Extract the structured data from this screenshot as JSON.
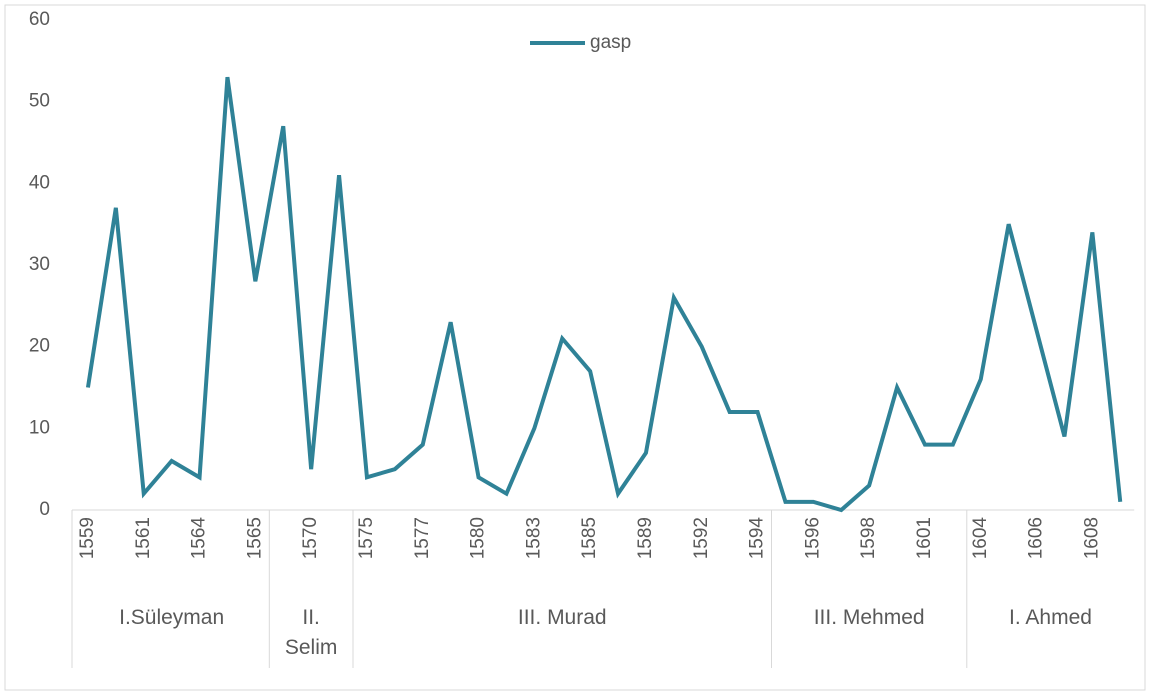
{
  "chart_data": {
    "type": "line",
    "categories": [
      "1559",
      null,
      "1561",
      null,
      "1564",
      null,
      "1565",
      null,
      "1570",
      null,
      "1575",
      null,
      "1577",
      null,
      "1580",
      null,
      "1583",
      null,
      "1585",
      null,
      "1589",
      null,
      "1592",
      null,
      "1594",
      null,
      "1596",
      null,
      "1598",
      null,
      "1601",
      null,
      "1604",
      null,
      "1606",
      null,
      "1608",
      null
    ],
    "groups": [
      {
        "label": "I.Süleyman",
        "span": 7
      },
      {
        "label": "II. Selim",
        "span": 3
      },
      {
        "label": "III. Murad",
        "span": 15
      },
      {
        "label": "III. Mehmed",
        "span": 7
      },
      {
        "label": "I. Ahmed",
        "span": 6
      }
    ],
    "series": [
      {
        "name": "gasp",
        "color": "#2f8297",
        "values": [
          15,
          37,
          2,
          6,
          4,
          53,
          28,
          47,
          5,
          41,
          4,
          5,
          8,
          23,
          4,
          2,
          10,
          21,
          17,
          2,
          7,
          26,
          20,
          12,
          12,
          1,
          1,
          0,
          3,
          15,
          8,
          8,
          16,
          35,
          22,
          9,
          34,
          1
        ]
      }
    ],
    "ylim": [
      0,
      60
    ],
    "yticks": [
      0,
      10,
      20,
      30,
      40,
      50,
      60
    ],
    "legend": "top"
  }
}
